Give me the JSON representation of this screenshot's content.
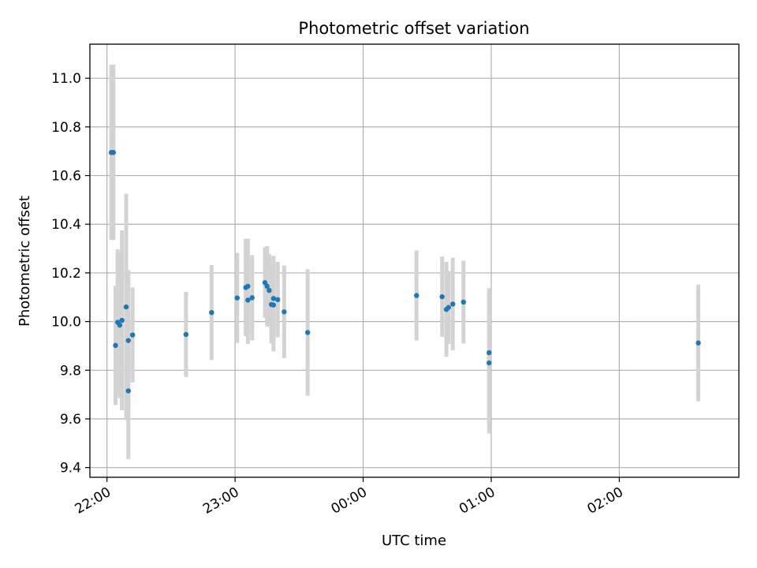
{
  "chart_data": {
    "type": "scatter",
    "title": "Photometric offset variation",
    "xlabel": "UTC time",
    "ylabel": "Photometric offset",
    "x_ticks": [
      "22:00",
      "23:00",
      "00:00",
      "01:00",
      "02:00"
    ],
    "y_ticks": [
      "9.4",
      "9.6",
      "9.8",
      "10.0",
      "10.2",
      "10.4",
      "10.6",
      "10.8",
      "11.0"
    ],
    "xlim": [
      "21:52",
      "02:56"
    ],
    "ylim": [
      9.36,
      11.14
    ],
    "grid": true,
    "colors": {
      "point": "#1f77b4",
      "errorbar": "#d3d3d3",
      "grid": "#b0b0b0"
    },
    "points": [
      {
        "x": "22:02",
        "y": 10.695,
        "err": 0.36
      },
      {
        "x": "22:03",
        "y": 10.695,
        "err": 0.36
      },
      {
        "x": "22:04",
        "y": 9.902,
        "err": 0.245
      },
      {
        "x": "22:05",
        "y": 9.997,
        "err": 0.3
      },
      {
        "x": "22:06",
        "y": 9.985,
        "err": 0.3
      },
      {
        "x": "22:07",
        "y": 10.005,
        "err": 0.37
      },
      {
        "x": "22:09",
        "y": 10.06,
        "err": 0.465
      },
      {
        "x": "22:10",
        "y": 9.715,
        "err": 0.28
      },
      {
        "x": "22:10",
        "y": 9.922,
        "err": 0.29
      },
      {
        "x": "22:12",
        "y": 9.945,
        "err": 0.195
      },
      {
        "x": "22:37",
        "y": 9.947,
        "err": 0.175
      },
      {
        "x": "22:49",
        "y": 10.037,
        "err": 0.195
      },
      {
        "x": "23:01",
        "y": 10.097,
        "err": 0.185
      },
      {
        "x": "23:05",
        "y": 10.14,
        "err": 0.2
      },
      {
        "x": "23:06",
        "y": 10.145,
        "err": 0.195
      },
      {
        "x": "23:06",
        "y": 10.088,
        "err": 0.18
      },
      {
        "x": "23:08",
        "y": 10.098,
        "err": 0.175
      },
      {
        "x": "23:14",
        "y": 10.16,
        "err": 0.145
      },
      {
        "x": "23:15",
        "y": 10.145,
        "err": 0.165
      },
      {
        "x": "23:16",
        "y": 10.128,
        "err": 0.15
      },
      {
        "x": "23:17",
        "y": 10.07,
        "err": 0.16
      },
      {
        "x": "23:18",
        "y": 10.068,
        "err": 0.19
      },
      {
        "x": "23:18",
        "y": 10.095,
        "err": 0.175
      },
      {
        "x": "23:20",
        "y": 10.09,
        "err": 0.155
      },
      {
        "x": "23:23",
        "y": 10.04,
        "err": 0.19
      },
      {
        "x": "23:34",
        "y": 9.955,
        "err": 0.26
      },
      {
        "x": "00:25",
        "y": 10.107,
        "err": 0.185
      },
      {
        "x": "00:37",
        "y": 10.102,
        "err": 0.165
      },
      {
        "x": "00:39",
        "y": 10.05,
        "err": 0.195
      },
      {
        "x": "00:40",
        "y": 10.058,
        "err": 0.15
      },
      {
        "x": "00:42",
        "y": 10.072,
        "err": 0.19
      },
      {
        "x": "00:47",
        "y": 10.08,
        "err": 0.17
      },
      {
        "x": "00:59",
        "y": 9.872,
        "err": 0.265
      },
      {
        "x": "00:59",
        "y": 9.83,
        "err": 0.29
      },
      {
        "x": "02:37",
        "y": 9.912,
        "err": 0.24
      }
    ]
  }
}
